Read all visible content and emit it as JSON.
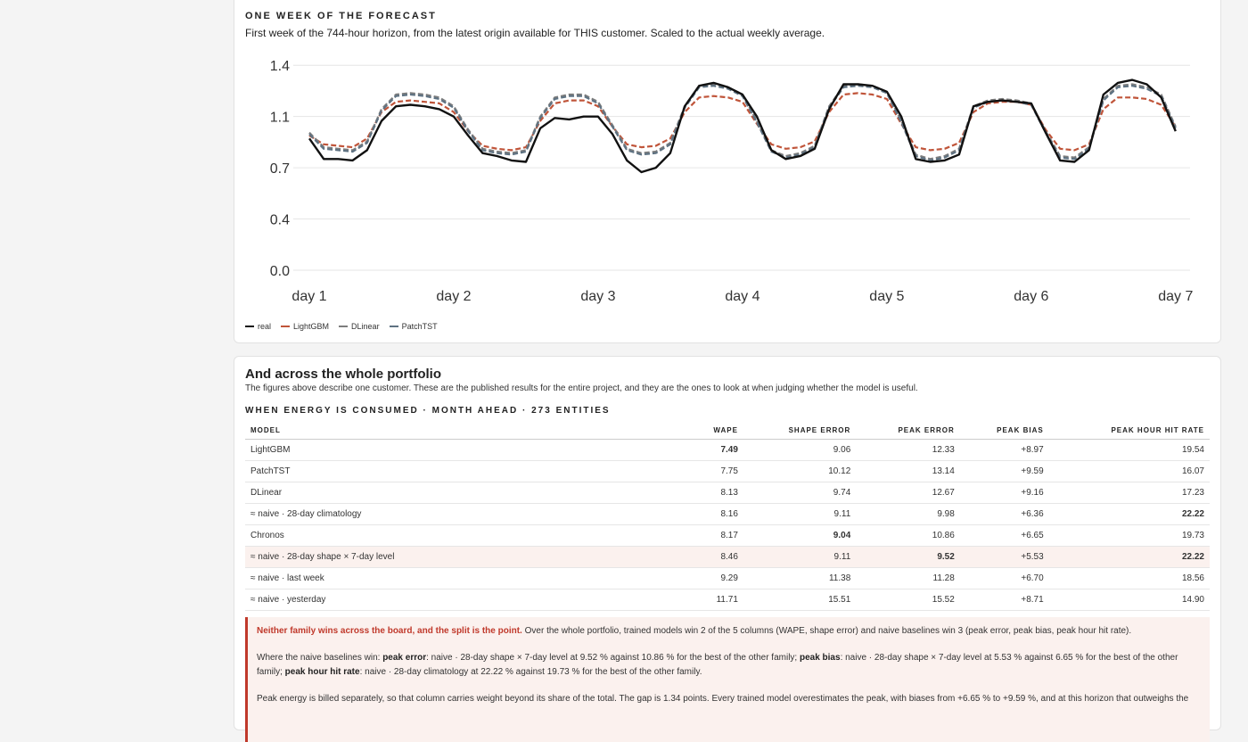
{
  "forecast": {
    "kicker": "ONE WEEK OF THE FORECAST",
    "subtitle": "First week of the 744-hour horizon, from the latest origin available for THIS customer. Scaled to the actual weekly average.",
    "legend": [
      {
        "label": "real",
        "color": "#111111"
      },
      {
        "label": "LightGBM",
        "color": "#c0553a"
      },
      {
        "label": "DLinear",
        "color": "#7d7d7d"
      },
      {
        "label": "PatchTST",
        "color": "#5e7282"
      }
    ]
  },
  "chart_data": {
    "type": "line",
    "title": "",
    "xlabel": "",
    "ylabel": "",
    "ylim": [
      0.0,
      1.45
    ],
    "y_ticks": [
      "1.4",
      "1.1",
      "0.7",
      "0.4",
      "0.0"
    ],
    "y_tick_values": [
      1.4,
      1.05,
      0.7,
      0.35,
      0.0
    ],
    "x_ticks": [
      "day 1",
      "day 2",
      "day 3",
      "day 4",
      "day 5",
      "day 6",
      "day 7"
    ],
    "x_range": [
      0,
      6.1
    ],
    "grid": true,
    "legend_position": "bottom-left",
    "series": [
      {
        "name": "real",
        "color": "#111111",
        "dash": "",
        "x": [
          0,
          0.1,
          0.2,
          0.3,
          0.4,
          0.5,
          0.6,
          0.7,
          0.8,
          0.9,
          1.0,
          1.1,
          1.2,
          1.3,
          1.4,
          1.5,
          1.6,
          1.7,
          1.8,
          1.9,
          2.0,
          2.1,
          2.2,
          2.3,
          2.4,
          2.5,
          2.6,
          2.7,
          2.8,
          2.9,
          3.0,
          3.1,
          3.2,
          3.3,
          3.4,
          3.5,
          3.6,
          3.7,
          3.8,
          3.9,
          4.0,
          4.1,
          4.2,
          4.3,
          4.4,
          4.5,
          4.6,
          4.7,
          4.8,
          4.9,
          5.0,
          5.1,
          5.2,
          5.3,
          5.4,
          5.5,
          5.6,
          5.7,
          5.8,
          5.9,
          6.0
        ],
        "y": [
          0.9,
          0.76,
          0.76,
          0.75,
          0.82,
          1.02,
          1.12,
          1.13,
          1.12,
          1.1,
          1.05,
          0.92,
          0.8,
          0.78,
          0.75,
          0.74,
          0.97,
          1.04,
          1.03,
          1.05,
          1.05,
          0.93,
          0.75,
          0.67,
          0.7,
          0.8,
          1.12,
          1.26,
          1.28,
          1.25,
          1.2,
          1.05,
          0.82,
          0.76,
          0.78,
          0.83,
          1.1,
          1.27,
          1.27,
          1.26,
          1.22,
          1.05,
          0.76,
          0.74,
          0.75,
          0.79,
          1.12,
          1.15,
          1.16,
          1.15,
          1.14,
          0.94,
          0.75,
          0.74,
          0.82,
          1.2,
          1.28,
          1.3,
          1.27,
          1.18,
          0.95
        ]
      },
      {
        "name": "LightGBM",
        "color": "#c0553a",
        "dash": "6,3",
        "x": [
          0,
          0.1,
          0.2,
          0.3,
          0.4,
          0.5,
          0.6,
          0.7,
          0.8,
          0.9,
          1.0,
          1.1,
          1.2,
          1.3,
          1.4,
          1.5,
          1.6,
          1.7,
          1.8,
          1.9,
          2.0,
          2.1,
          2.2,
          2.3,
          2.4,
          2.5,
          2.6,
          2.7,
          2.8,
          2.9,
          3.0,
          3.1,
          3.2,
          3.3,
          3.4,
          3.5,
          3.6,
          3.7,
          3.8,
          3.9,
          4.0,
          4.1,
          4.2,
          4.3,
          4.4,
          4.5,
          4.6,
          4.7,
          4.8,
          4.9,
          5.0,
          5.1,
          5.2,
          5.3,
          5.4,
          5.5,
          5.6,
          5.7,
          5.8,
          5.9,
          6.0
        ],
        "y": [
          0.92,
          0.86,
          0.85,
          0.84,
          0.9,
          1.08,
          1.15,
          1.16,
          1.15,
          1.14,
          1.08,
          0.95,
          0.85,
          0.83,
          0.82,
          0.84,
          1.02,
          1.14,
          1.16,
          1.16,
          1.12,
          0.98,
          0.86,
          0.84,
          0.85,
          0.9,
          1.08,
          1.18,
          1.19,
          1.18,
          1.15,
          1.0,
          0.86,
          0.83,
          0.84,
          0.88,
          1.08,
          1.2,
          1.21,
          1.2,
          1.17,
          1.0,
          0.84,
          0.82,
          0.83,
          0.87,
          1.08,
          1.14,
          1.15,
          1.15,
          1.13,
          0.96,
          0.83,
          0.82,
          0.86,
          1.1,
          1.18,
          1.18,
          1.17,
          1.13,
          0.98
        ]
      },
      {
        "name": "DLinear",
        "color": "#7d7d7d",
        "dash": "6,3",
        "x": [
          0,
          0.1,
          0.2,
          0.3,
          0.4,
          0.5,
          0.6,
          0.7,
          0.8,
          0.9,
          1.0,
          1.1,
          1.2,
          1.3,
          1.4,
          1.5,
          1.6,
          1.7,
          1.8,
          1.9,
          2.0,
          2.1,
          2.2,
          2.3,
          2.4,
          2.5,
          2.6,
          2.7,
          2.8,
          2.9,
          3.0,
          3.1,
          3.2,
          3.3,
          3.4,
          3.5,
          3.6,
          3.7,
          3.8,
          3.9,
          4.0,
          4.1,
          4.2,
          4.3,
          4.4,
          4.5,
          4.6,
          4.7,
          4.8,
          4.9,
          5.0,
          5.1,
          5.2,
          5.3,
          5.4,
          5.5,
          5.6,
          5.7,
          5.8,
          5.9,
          6.0
        ],
        "y": [
          0.94,
          0.84,
          0.83,
          0.82,
          0.88,
          1.1,
          1.2,
          1.21,
          1.2,
          1.18,
          1.12,
          0.96,
          0.83,
          0.81,
          0.8,
          0.82,
          1.05,
          1.18,
          1.2,
          1.2,
          1.15,
          0.99,
          0.83,
          0.8,
          0.81,
          0.87,
          1.12,
          1.26,
          1.27,
          1.25,
          1.2,
          1.02,
          0.82,
          0.78,
          0.8,
          0.85,
          1.12,
          1.26,
          1.27,
          1.26,
          1.22,
          1.02,
          0.79,
          0.76,
          0.78,
          0.83,
          1.12,
          1.16,
          1.17,
          1.16,
          1.14,
          0.95,
          0.78,
          0.77,
          0.84,
          1.17,
          1.26,
          1.27,
          1.25,
          1.2,
          0.98
        ]
      },
      {
        "name": "PatchTST",
        "color": "#5e7282",
        "dash": "6,3",
        "x": [
          0,
          0.1,
          0.2,
          0.3,
          0.4,
          0.5,
          0.6,
          0.7,
          0.8,
          0.9,
          1.0,
          1.1,
          1.2,
          1.3,
          1.4,
          1.5,
          1.6,
          1.7,
          1.8,
          1.9,
          2.0,
          2.1,
          2.2,
          2.3,
          2.4,
          2.5,
          2.6,
          2.7,
          2.8,
          2.9,
          3.0,
          3.1,
          3.2,
          3.3,
          3.4,
          3.5,
          3.6,
          3.7,
          3.8,
          3.9,
          4.0,
          4.1,
          4.2,
          4.3,
          4.4,
          4.5,
          4.6,
          4.7,
          4.8,
          4.9,
          5.0,
          5.1,
          5.2,
          5.3,
          5.4,
          5.5,
          5.6,
          5.7,
          5.8,
          5.9,
          6.0
        ],
        "y": [
          0.93,
          0.83,
          0.82,
          0.81,
          0.87,
          1.09,
          1.19,
          1.2,
          1.19,
          1.17,
          1.11,
          0.95,
          0.82,
          0.8,
          0.79,
          0.81,
          1.04,
          1.17,
          1.19,
          1.19,
          1.14,
          0.98,
          0.82,
          0.79,
          0.8,
          0.86,
          1.11,
          1.25,
          1.26,
          1.24,
          1.19,
          1.01,
          0.81,
          0.77,
          0.79,
          0.84,
          1.11,
          1.25,
          1.26,
          1.25,
          1.21,
          1.01,
          0.78,
          0.75,
          0.77,
          0.82,
          1.11,
          1.15,
          1.16,
          1.15,
          1.13,
          0.94,
          0.77,
          0.76,
          0.83,
          1.16,
          1.25,
          1.26,
          1.24,
          1.19,
          0.97
        ]
      }
    ]
  },
  "portfolio": {
    "title": "And across the whole portfolio",
    "note": "The figures above describe one customer. These are the published results for the entire project, and they are the ones to look at when judging whether the model is useful.",
    "kicker": "WHEN ENERGY IS CONSUMED · MONTH AHEAD · 273 ENTITIES",
    "columns": [
      "MODEL",
      "WAPE",
      "SHAPE ERROR",
      "PEAK ERROR",
      "PEAK BIAS",
      "PEAK HOUR HIT RATE"
    ],
    "rows": [
      {
        "model": "LightGBM",
        "wape": "7.49",
        "shape": "9.06",
        "peak_error": "12.33",
        "peak_bias": "+8.97",
        "hit_rate": "19.54"
      },
      {
        "model": "PatchTST",
        "wape": "7.75",
        "shape": "10.12",
        "peak_error": "13.14",
        "peak_bias": "+9.59",
        "hit_rate": "16.07"
      },
      {
        "model": "DLinear",
        "wape": "8.13",
        "shape": "9.74",
        "peak_error": "12.67",
        "peak_bias": "+9.16",
        "hit_rate": "17.23"
      },
      {
        "model": "≈ naive · 28-day climatology",
        "wape": "8.16",
        "shape": "9.11",
        "peak_error": "9.98",
        "peak_bias": "+6.36",
        "hit_rate": "22.22"
      },
      {
        "model": "Chronos",
        "wape": "8.17",
        "shape": "9.04",
        "peak_error": "10.86",
        "peak_bias": "+6.65",
        "hit_rate": "19.73"
      },
      {
        "model": "≈ naive · 28-day shape × 7-day level",
        "wape": "8.46",
        "shape": "9.11",
        "peak_error": "9.52",
        "peak_bias": "+5.53",
        "hit_rate": "22.22"
      },
      {
        "model": "≈ naive · last week",
        "wape": "9.29",
        "shape": "11.38",
        "peak_error": "11.28",
        "peak_bias": "+6.70",
        "hit_rate": "18.56"
      },
      {
        "model": "≈ naive · yesterday",
        "wape": "11.71",
        "shape": "15.51",
        "peak_error": "15.52",
        "peak_bias": "+8.71",
        "hit_rate": "14.90"
      }
    ],
    "callout": {
      "lead": "Neither family wins across the board, and the split is the point.",
      "p1_rest": " Over the whole portfolio, trained models win 2 of the 5 columns (WAPE, shape error) and naive baselines win 3 (peak error, peak bias, peak hour hit rate).",
      "p2_a": "Where the naive baselines win: ",
      "p2_b": "peak error",
      "p2_c": ": naive · 28-day shape × 7-day level at 9.52 % against 10.86 % for the best of the other family; ",
      "p2_d": "peak bias",
      "p2_e": ": naive · 28-day shape × 7-day level at 5.53 % against 6.65 % for the best of the other family; ",
      "p2_f": "peak hour hit rate",
      "p2_g": ": naive · 28-day climatology at 22.22 % against 19.73 % for the best of the other family.",
      "p3": "Peak energy is billed separately, so that column carries weight beyond its share of the total. The gap is 1.34 points. Every trained model overestimates the peak, with biases from +6.65 % to +9.59 %, and at this horizon that outweighs the"
    }
  }
}
